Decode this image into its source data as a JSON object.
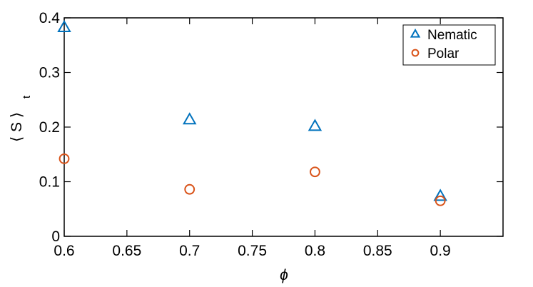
{
  "chart_data": {
    "type": "scatter",
    "xlabel": "ϕ",
    "ylabel": "⟨ S ⟩",
    "ylabel_subscript": "t",
    "xlim": [
      0.6,
      0.95
    ],
    "ylim": [
      0,
      0.4
    ],
    "xticks": [
      0.6,
      0.65,
      0.7,
      0.75,
      0.8,
      0.85,
      0.9
    ],
    "yticks": [
      0,
      0.1,
      0.2,
      0.3,
      0.4
    ],
    "legend": "upper right",
    "series": [
      {
        "name": "Nematic",
        "color": "#0072BD",
        "marker": "triangle",
        "x": [
          0.6,
          0.7,
          0.8,
          0.9
        ],
        "values": [
          0.382,
          0.213,
          0.201,
          0.073
        ]
      },
      {
        "name": "Polar",
        "color": "#D95319",
        "marker": "circle",
        "x": [
          0.6,
          0.7,
          0.8,
          0.9
        ],
        "values": [
          0.142,
          0.086,
          0.118,
          0.065
        ]
      }
    ]
  }
}
